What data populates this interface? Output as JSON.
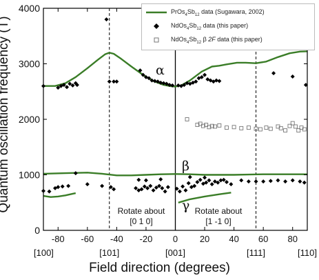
{
  "chart_data": {
    "type": "scatter",
    "xlabel": "Field direction (degrees)",
    "ylabel": "Quantum oscillation frequency (T)",
    "xlim": [
      -90,
      90
    ],
    "ylim": [
      0,
      4000
    ],
    "xticks": [
      -80,
      -60,
      -40,
      -20,
      0,
      20,
      40,
      60,
      80
    ],
    "yticks": [
      0,
      1000,
      2000,
      3000,
      4000
    ],
    "direction_labels": [
      {
        "x": -90,
        "label": "[100]"
      },
      {
        "x": -45,
        "label": "[101]"
      },
      {
        "x": 0,
        "label": "[001]"
      },
      {
        "x": 55,
        "label": "[111]"
      },
      {
        "x": 90,
        "label": "[110]"
      }
    ],
    "vlines": [
      {
        "x": -45,
        "style": "dashed"
      },
      {
        "x": 0,
        "style": "solid"
      },
      {
        "x": 55,
        "style": "dashed"
      }
    ],
    "annotations": [
      {
        "text": "α",
        "x": -28,
        "y": 3100
      },
      {
        "text": "β",
        "x": 1,
        "y": 1150
      },
      {
        "text": "γ",
        "x": 1,
        "y": 550
      },
      {
        "text_lines": [
          "Rotate about",
          "[0 1 0]"
        ]
      },
      {
        "text_lines": [
          "Rotate about",
          "[1 -1 0]"
        ]
      }
    ],
    "legend": {
      "placement": "top-right",
      "entries": [
        {
          "parts": [
            {
              "t": "PrOs"
            },
            {
              "t": "4",
              "sub": true
            },
            {
              "t": "Sb"
            },
            {
              "t": "12",
              "sub": true
            },
            {
              "t": " data (Sugawara, 2002)"
            }
          ],
          "marker": "line",
          "color": "#3a7d27"
        },
        {
          "parts": [
            {
              "t": "NdOs"
            },
            {
              "t": "4",
              "sub": true
            },
            {
              "t": "Sb"
            },
            {
              "t": "12",
              "sub": true
            },
            {
              "t": " data (this paper)"
            }
          ],
          "marker": "filled-diamond",
          "color": "#000000"
        },
        {
          "parts": [
            {
              "t": "NdOs"
            },
            {
              "t": "4",
              "sub": true
            },
            {
              "t": "Sb"
            },
            {
              "t": "12",
              "sub": true
            },
            {
              "t": " β "
            },
            {
              "t": "2F",
              "italic": true
            },
            {
              "t": " data (this paper)"
            }
          ],
          "marker": "open-square",
          "color": "#777777"
        }
      ]
    },
    "series": [
      {
        "kind": "line",
        "color": "#3a7d27",
        "x": [
          -90,
          -82,
          -75,
          -68,
          -60,
          -53,
          -48,
          -45,
          -42,
          -37,
          -30,
          -22,
          -15,
          -8,
          -3,
          0,
          4,
          10,
          18,
          25,
          30,
          35,
          42,
          48,
          55,
          62,
          70,
          78,
          85,
          90
        ],
        "y": [
          2600,
          2600,
          2650,
          2760,
          2920,
          3070,
          3170,
          3200,
          3180,
          3090,
          2950,
          2800,
          2690,
          2620,
          2595,
          2590,
          2610,
          2700,
          2860,
          2950,
          2965,
          2990,
          3020,
          3020,
          3010,
          3040,
          3120,
          3190,
          3220,
          3225
        ]
      },
      {
        "kind": "line",
        "color": "#3a7d27",
        "x": [
          -90,
          -75,
          -60,
          -50,
          -40,
          -30,
          -20,
          -10,
          0,
          10,
          20,
          30,
          40,
          50,
          60,
          70,
          80,
          90
        ],
        "y": [
          1020,
          1030,
          1040,
          1020,
          990,
          990,
          1000,
          1010,
          1015,
          1010,
          1000,
          1000,
          1000,
          1005,
          1010,
          1010,
          1010,
          1010
        ]
      },
      {
        "kind": "line",
        "color": "#3a7d27",
        "x": [
          -90,
          -85,
          -80,
          -75,
          -70,
          -68
        ],
        "y": [
          620,
          600,
          610,
          630,
          660,
          670
        ]
      },
      {
        "kind": "line",
        "color": "#3a7d27",
        "x": [
          2,
          10,
          20,
          30,
          38
        ],
        "y": [
          500,
          560,
          610,
          650,
          680
        ]
      },
      {
        "kind": "scatter",
        "name": "NdOs4Sb12 data (this paper)",
        "marker": "filled-diamond",
        "color": "#000000",
        "points": [
          [
            -90,
            2600
          ],
          [
            -80,
            2570
          ],
          [
            -78,
            2600
          ],
          [
            -76,
            2620
          ],
          [
            -74,
            2580
          ],
          [
            -72,
            2640
          ],
          [
            -70,
            2610
          ],
          [
            -68,
            2650
          ],
          [
            -67,
            2620
          ],
          [
            -47,
            3800
          ],
          [
            -45,
            2680
          ],
          [
            -42,
            2680
          ],
          [
            -40,
            2680
          ],
          [
            -24,
            2880
          ],
          [
            -22,
            2800
          ],
          [
            -20,
            2760
          ],
          [
            -18,
            2740
          ],
          [
            -16,
            2700
          ],
          [
            -14,
            2690
          ],
          [
            -12,
            2680
          ],
          [
            -10,
            2660
          ],
          [
            -8,
            2650
          ],
          [
            -6,
            2640
          ],
          [
            -4,
            2620
          ],
          [
            -2,
            2610
          ],
          [
            2,
            2610
          ],
          [
            4,
            2600
          ],
          [
            6,
            2620
          ],
          [
            8,
            2650
          ],
          [
            10,
            2640
          ],
          [
            12,
            2660
          ],
          [
            14,
            2680
          ],
          [
            16,
            2740
          ],
          [
            18,
            2760
          ],
          [
            20,
            2800
          ],
          [
            22,
            2720
          ],
          [
            24,
            2700
          ],
          [
            26,
            2680
          ],
          [
            28,
            2700
          ],
          [
            30,
            2690
          ],
          [
            67,
            2830
          ],
          [
            80,
            2770
          ],
          [
            89,
            2620
          ],
          [
            -90,
            710
          ],
          [
            -86,
            700
          ],
          [
            -82,
            760
          ],
          [
            -80,
            780
          ],
          [
            -77,
            790
          ],
          [
            -73,
            800
          ],
          [
            -68,
            1030
          ],
          [
            -60,
            830
          ],
          [
            -50,
            800
          ],
          [
            -44,
            780
          ],
          [
            -42,
            740
          ],
          [
            -27,
            760
          ],
          [
            -25,
            720
          ],
          [
            -23,
            740
          ],
          [
            -21,
            790
          ],
          [
            -19,
            760
          ],
          [
            -17,
            800
          ],
          [
            -15,
            720
          ],
          [
            -13,
            770
          ],
          [
            -11,
            800
          ],
          [
            -9,
            760
          ],
          [
            -7,
            700
          ],
          [
            -5,
            780
          ],
          [
            1,
            750
          ],
          [
            3,
            700
          ],
          [
            5,
            790
          ],
          [
            7,
            720
          ],
          [
            9,
            850
          ],
          [
            11,
            780
          ],
          [
            13,
            800
          ],
          [
            15,
            870
          ],
          [
            17,
            910
          ],
          [
            19,
            840
          ],
          [
            21,
            860
          ],
          [
            23,
            900
          ],
          [
            25,
            830
          ],
          [
            27,
            880
          ],
          [
            29,
            860
          ],
          [
            31,
            900
          ],
          [
            33,
            910
          ],
          [
            35,
            870
          ],
          [
            38,
            830
          ],
          [
            -10,
            920
          ],
          [
            -20,
            900
          ],
          [
            -25,
            910
          ],
          [
            10,
            960
          ],
          [
            20,
            950
          ],
          [
            45,
            900
          ],
          [
            50,
            880
          ],
          [
            55,
            880
          ],
          [
            60,
            880
          ],
          [
            65,
            890
          ],
          [
            70,
            900
          ],
          [
            75,
            880
          ],
          [
            80,
            900
          ],
          [
            85,
            880
          ],
          [
            88,
            860
          ]
        ]
      },
      {
        "kind": "scatter",
        "name": "NdOs4Sb12 β 2F data (this paper)",
        "marker": "open-square",
        "color": "#777777",
        "points": [
          [
            8,
            2000
          ],
          [
            15,
            1900
          ],
          [
            17,
            1920
          ],
          [
            19,
            1880
          ],
          [
            21,
            1900
          ],
          [
            23,
            1860
          ],
          [
            25,
            1880
          ],
          [
            27,
            1870
          ],
          [
            30,
            1890
          ],
          [
            35,
            1850
          ],
          [
            40,
            1860
          ],
          [
            45,
            1840
          ],
          [
            50,
            1850
          ],
          [
            55,
            1830
          ],
          [
            58,
            1820
          ],
          [
            62,
            1850
          ],
          [
            65,
            1830
          ],
          [
            70,
            1870
          ],
          [
            72,
            1840
          ],
          [
            75,
            1800
          ],
          [
            78,
            1880
          ],
          [
            80,
            1930
          ],
          [
            82,
            1870
          ],
          [
            84,
            1800
          ],
          [
            86,
            1850
          ],
          [
            88,
            1820
          ]
        ]
      }
    ]
  }
}
